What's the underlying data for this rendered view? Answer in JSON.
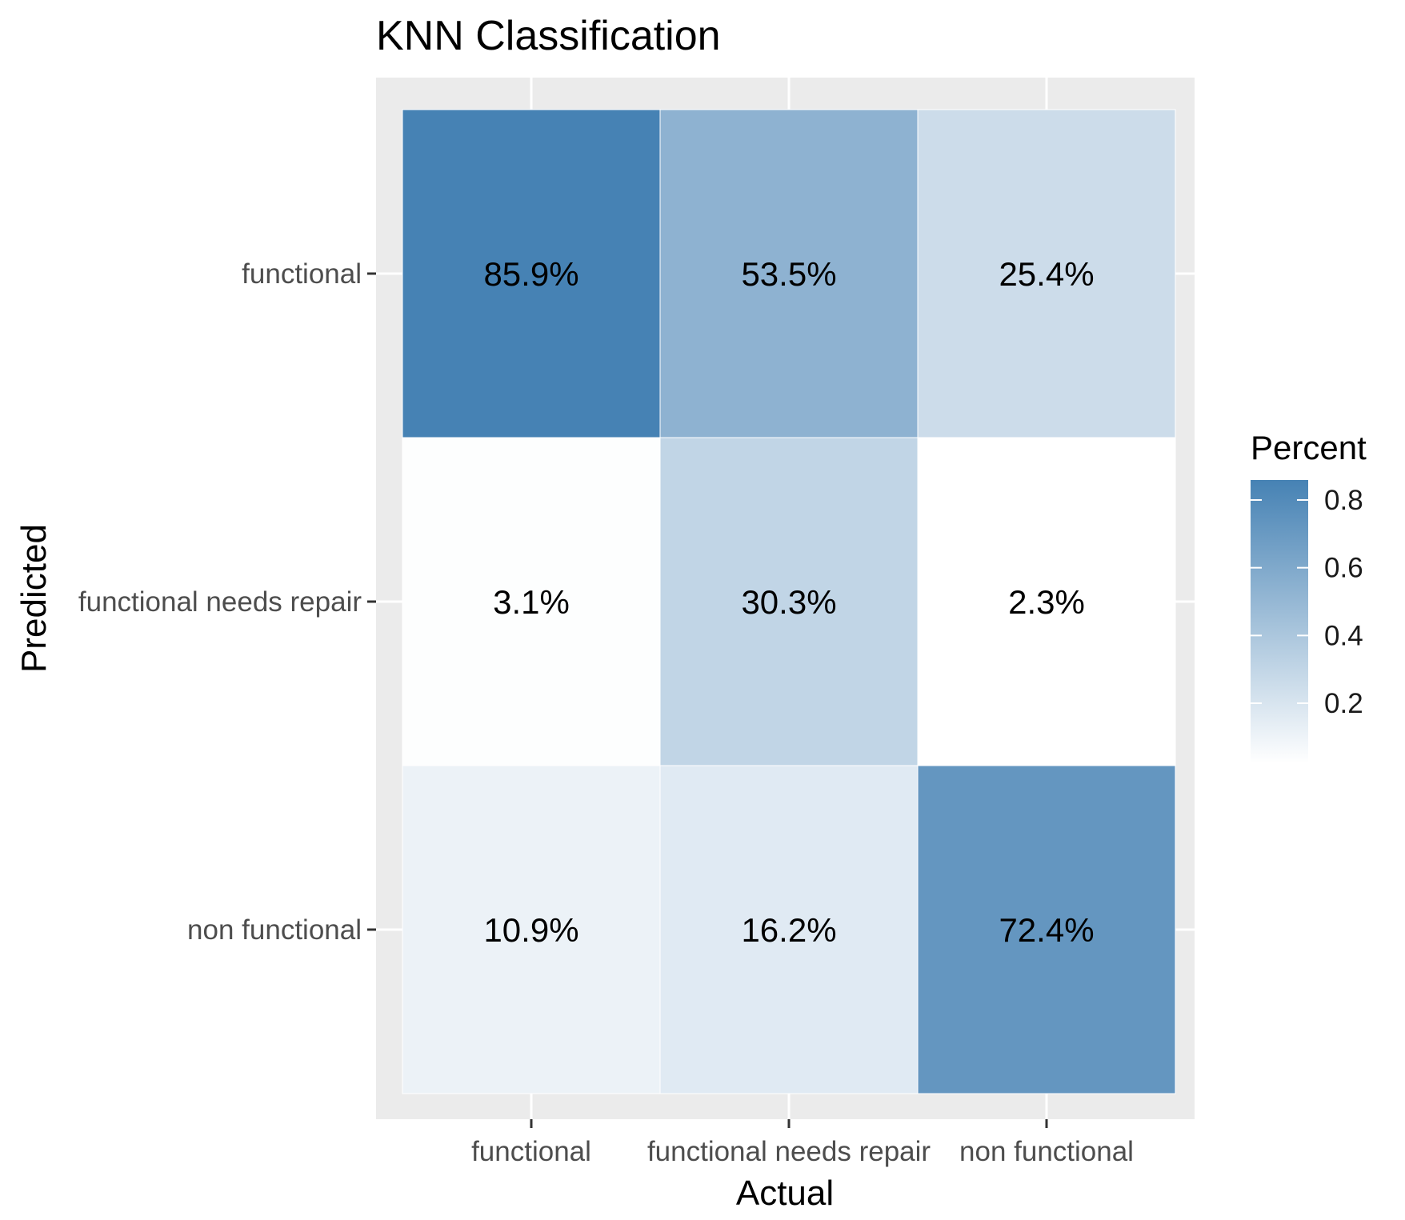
{
  "chart_data": {
    "type": "heatmap",
    "title": "KNN Classification",
    "xlabel": "Actual",
    "ylabel": "Predicted",
    "x_categories": [
      "functional",
      "functional needs repair",
      "non functional"
    ],
    "y_categories": [
      "functional",
      "functional needs repair",
      "non functional"
    ],
    "cells": [
      {
        "actual": "functional",
        "predicted": "functional",
        "value": 0.859,
        "label": "85.9%"
      },
      {
        "actual": "functional needs repair",
        "predicted": "functional",
        "value": 0.535,
        "label": "53.5%"
      },
      {
        "actual": "non functional",
        "predicted": "functional",
        "value": 0.254,
        "label": "25.4%"
      },
      {
        "actual": "functional",
        "predicted": "functional needs repair",
        "value": 0.031,
        "label": "3.1%"
      },
      {
        "actual": "functional needs repair",
        "predicted": "functional needs repair",
        "value": 0.303,
        "label": "30.3%"
      },
      {
        "actual": "non functional",
        "predicted": "functional needs repair",
        "value": 0.023,
        "label": "2.3%"
      },
      {
        "actual": "functional",
        "predicted": "non functional",
        "value": 0.109,
        "label": "10.9%"
      },
      {
        "actual": "functional needs repair",
        "predicted": "non functional",
        "value": 0.162,
        "label": "16.2%"
      },
      {
        "actual": "non functional",
        "predicted": "non functional",
        "value": 0.724,
        "label": "72.4%"
      }
    ],
    "legend": {
      "title": "Percent",
      "ticks": [
        "0.2",
        "0.4",
        "0.6",
        "0.8"
      ],
      "range": [
        0.023,
        0.859
      ],
      "low_color": "#ffffff",
      "high_color": "#4682b4"
    },
    "grid": true,
    "panel_background": "#ebebeb"
  }
}
